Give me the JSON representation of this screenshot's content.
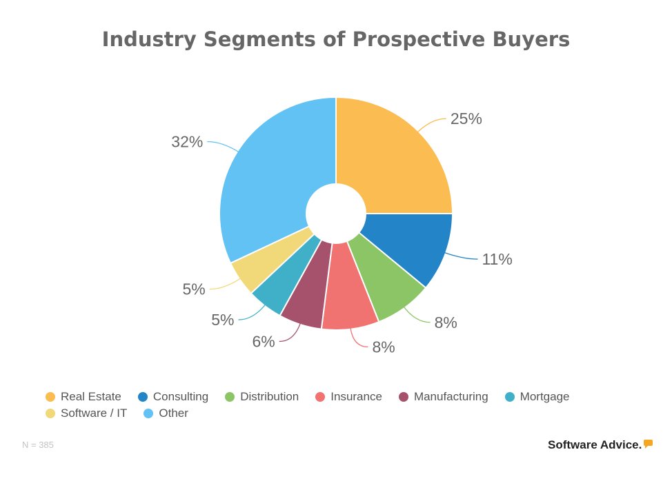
{
  "chart_data": {
    "type": "pie",
    "title": "Industry Segments of Prospective Buyers",
    "categories": [
      "Real Estate",
      "Consulting",
      "Distribution",
      "Insurance",
      "Manufacturing",
      "Mortgage",
      "Software / IT",
      "Other"
    ],
    "values": [
      25,
      11,
      8,
      8,
      6,
      5,
      5,
      32
    ],
    "labels": [
      "25%",
      "11%",
      "8%",
      "8%",
      "6%",
      "5%",
      "5%",
      "32%"
    ],
    "colors": [
      "#fbbc52",
      "#2385c8",
      "#8cc566",
      "#f07372",
      "#a7526d",
      "#40b0c8",
      "#f1d878",
      "#62c2f4"
    ],
    "legend_position": "bottom",
    "donut_hole": true
  },
  "footer": {
    "sample_note": "N = 385",
    "brand": "Software Advice."
  }
}
